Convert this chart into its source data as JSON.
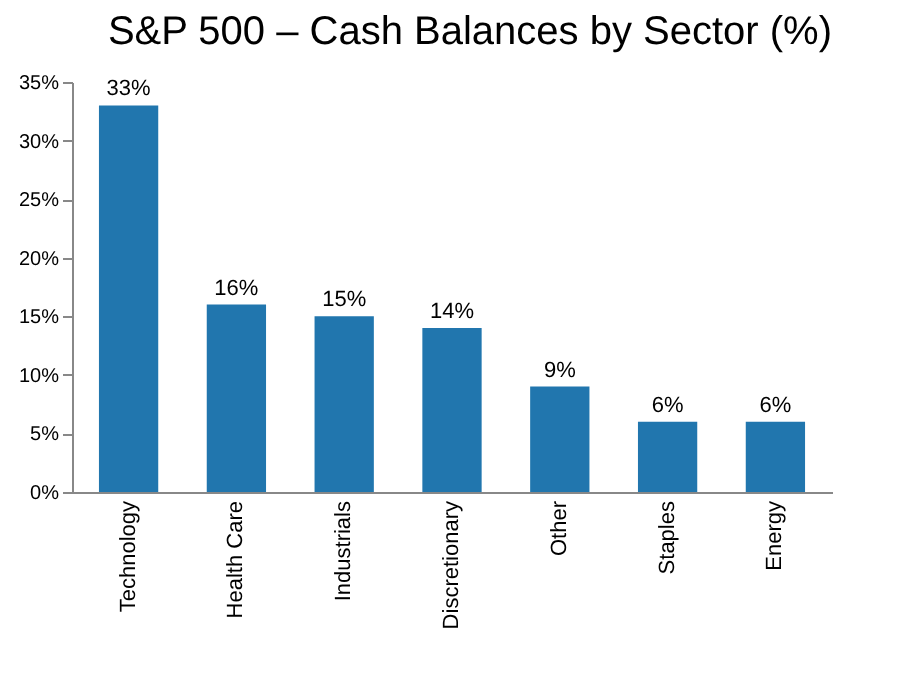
{
  "chart_data": {
    "type": "bar",
    "title": "S&P 500 – Cash Balances by Sector (%)",
    "categories": [
      "Technology",
      "Health Care",
      "Industrials",
      "Discretionary",
      "Other",
      "Staples",
      "Energy"
    ],
    "values": [
      33,
      16,
      15,
      14,
      9,
      6,
      6
    ],
    "value_labels": [
      "33%",
      "16%",
      "15%",
      "14%",
      "9%",
      "6%",
      "6%"
    ],
    "color": "#2176ae",
    "ylim": [
      0,
      35
    ],
    "yticks": [
      {
        "value": 0,
        "label": "0%"
      },
      {
        "value": 5,
        "label": "5%"
      },
      {
        "value": 10,
        "label": "10%"
      },
      {
        "value": 15,
        "label": "15%"
      },
      {
        "value": 20,
        "label": "20%"
      },
      {
        "value": 25,
        "label": "25%"
      },
      {
        "value": 30,
        "label": "30%"
      },
      {
        "value": 35,
        "label": "35%"
      }
    ],
    "grid": false
  }
}
